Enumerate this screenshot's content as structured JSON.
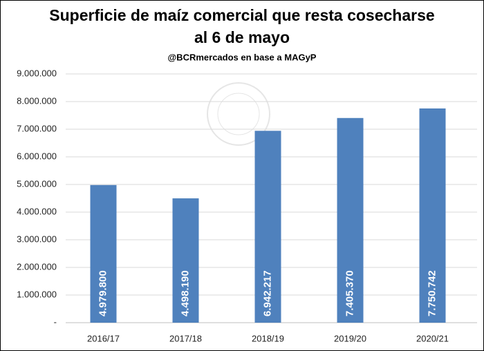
{
  "chart_data": {
    "type": "bar",
    "title": [
      "Superficie de maíz comercial que resta cosecharse",
      "al 6 de mayo"
    ],
    "subtitle": "@BCRmercados  en base a MAGyP",
    "categories": [
      "2016/17",
      "2017/18",
      "2018/19",
      "2019/20",
      "2020/21"
    ],
    "values": [
      4979800,
      4498190,
      6942217,
      7405370,
      7750742
    ],
    "value_labels": [
      "4.979.800",
      "4.498.190",
      "6.942.217",
      "7.405.370",
      "7.750.742"
    ],
    "color": "#4f81bd",
    "ylim": [
      0,
      9000000
    ],
    "yticks": [
      {
        "value": 0,
        "label": "-"
      },
      {
        "value": 1000000,
        "label": "1.000.000"
      },
      {
        "value": 2000000,
        "label": "2.000.000"
      },
      {
        "value": 3000000,
        "label": "3.000.000"
      },
      {
        "value": 4000000,
        "label": "4.000.000"
      },
      {
        "value": 5000000,
        "label": "5.000.000"
      },
      {
        "value": 6000000,
        "label": "6.000.000"
      },
      {
        "value": 7000000,
        "label": "7.000.000"
      },
      {
        "value": 8000000,
        "label": "8.000.000"
      },
      {
        "value": 9000000,
        "label": "9.000.000"
      }
    ],
    "grid": true
  }
}
